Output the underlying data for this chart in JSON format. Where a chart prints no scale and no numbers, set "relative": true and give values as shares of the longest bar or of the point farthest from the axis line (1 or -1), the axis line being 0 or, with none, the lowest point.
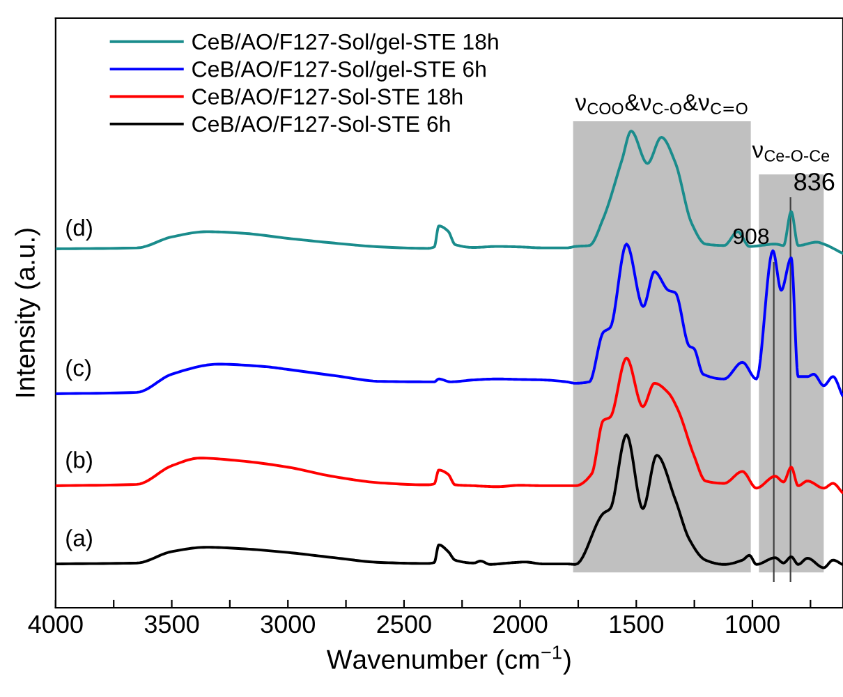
{
  "chart_data": {
    "type": "line",
    "relative": true,
    "xlabel": "Wavenumber (cm$^{−1}$)",
    "ylabel": "Intensity (a.u.)",
    "xlim": [
      4000,
      610
    ],
    "xticks": [
      4000,
      {
        "value": 3750,
        "label": null
      },
      3500,
      {
        "value": 3250,
        "label": null
      },
      3000,
      {
        "value": 2750,
        "label": null
      },
      2500,
      {
        "value": 2250,
        "label": null
      },
      2000,
      {
        "value": 1750,
        "label": null
      },
      1500,
      {
        "value": 1250,
        "label": null
      },
      1000,
      {
        "value": 750,
        "label": null
      }
    ],
    "grid": false,
    "legend": "top left",
    "tick_labels": "x",
    "line_style": "solid",
    "marker": "none",
    "series": [
      {
        "name": "CeB/AO/F127-Sol/gel-STE 18h",
        "color": "#1a8c8c",
        "x": [
          4000,
          3650,
          3500,
          3350,
          3200,
          3000,
          2800,
          2600,
          2400,
          2370,
          2350,
          2310,
          2280,
          2200,
          2100,
          2000,
          1900,
          1800,
          1762,
          1702,
          1642,
          1562,
          1522,
          1452,
          1392,
          1332,
          1262,
          1202,
          1122,
          1063,
          1013,
          902,
          866,
          833,
          803,
          723,
          693,
          613
        ],
        "values": [
          0.753,
          0.755,
          0.778,
          0.789,
          0.786,
          0.775,
          0.765,
          0.757,
          0.754,
          0.757,
          0.801,
          0.79,
          0.762,
          0.756,
          0.758,
          0.757,
          0.755,
          0.755,
          0.758,
          0.76,
          0.817,
          0.939,
          1,
          0.932,
          0.987,
          0.934,
          0.807,
          0.763,
          0.76,
          0.789,
          0.758,
          0.763,
          0.76,
          0.831,
          0.76,
          0.767,
          0.763,
          0.744
        ]
      },
      {
        "name": "CeB/AO/F127-Sol/gel-STE 6h",
        "color": "#0000ff",
        "x": [
          4000,
          3650,
          3500,
          3300,
          3100,
          3000,
          2800,
          2600,
          2400,
          2370,
          2350,
          2300,
          2200,
          2100,
          2000,
          1900,
          1800,
          1762,
          1702,
          1642,
          1612,
          1542,
          1470,
          1422,
          1362,
          1332,
          1272,
          1252,
          1212,
          1122,
          1043,
          983,
          912,
          876,
          833,
          803,
          763,
          736,
          693,
          653,
          613
        ],
        "values": [
          0.449,
          0.452,
          0.49,
          0.511,
          0.506,
          0.5,
          0.487,
          0.475,
          0.474,
          0.474,
          0.48,
          0.474,
          0.478,
          0.48,
          0.479,
          0.478,
          0.474,
          0.471,
          0.474,
          0.578,
          0.588,
          0.763,
          0.632,
          0.705,
          0.666,
          0.661,
          0.549,
          0.544,
          0.49,
          0.48,
          0.515,
          0.48,
          0.749,
          0.666,
          0.734,
          0.485,
          0.485,
          0.49,
          0.466,
          0.485,
          0.446
        ]
      },
      {
        "name": "CeB/AO/F127-Sol-STE 18h",
        "color": "#ff0000",
        "x": [
          4000,
          3650,
          3500,
          3380,
          3200,
          3000,
          2800,
          2600,
          2400,
          2370,
          2350,
          2310,
          2280,
          2200,
          2100,
          2000,
          1900,
          1800,
          1762,
          1692,
          1642,
          1612,
          1542,
          1472,
          1422,
          1362,
          1322,
          1252,
          1202,
          1122,
          1043,
          983,
          902,
          866,
          833,
          803,
          763,
          693,
          653,
          613
        ],
        "values": [
          0.256,
          0.259,
          0.298,
          0.314,
          0.308,
          0.295,
          0.275,
          0.262,
          0.258,
          0.26,
          0.289,
          0.28,
          0.258,
          0.256,
          0.254,
          0.257,
          0.256,
          0.256,
          0.256,
          0.281,
          0.393,
          0.4,
          0.524,
          0.422,
          0.471,
          0.451,
          0.417,
          0.32,
          0.266,
          0.261,
          0.286,
          0.251,
          0.276,
          0.264,
          0.295,
          0.256,
          0.266,
          0.251,
          0.261,
          0.242
        ]
      },
      {
        "name": "CeB/AO/F127-Sol-STE 6h",
        "color": "#000000",
        "x": [
          4000,
          3650,
          3500,
          3350,
          3200,
          3000,
          2800,
          2600,
          2400,
          2370,
          2350,
          2310,
          2280,
          2200,
          2170,
          2130,
          2050,
          1980,
          1900,
          1800,
          1762,
          1642,
          1612,
          1542,
          1472,
          1412,
          1332,
          1272,
          1202,
          1122,
          1043,
          1013,
          983,
          902,
          866,
          833,
          803,
          763,
          693,
          653,
          613
        ],
        "values": [
          0.092,
          0.094,
          0.118,
          0.127,
          0.124,
          0.116,
          0.105,
          0.095,
          0.093,
          0.095,
          0.132,
          0.118,
          0.1,
          0.094,
          0.098,
          0.091,
          0.094,
          0.096,
          0.092,
          0.092,
          0.091,
          0.198,
          0.208,
          0.363,
          0.208,
          0.32,
          0.227,
          0.144,
          0.1,
          0.091,
          0.1,
          0.11,
          0.091,
          0.105,
          0.094,
          0.107,
          0.091,
          0.104,
          0.084,
          0.1,
          0.091
        ]
      }
    ],
    "annotations": [
      "(d)",
      "(c)",
      "(b)",
      "(a)"
    ],
    "bands": [
      {
        "axis": "x",
        "from": 1772,
        "to": 1007,
        "color": "#c0c0c0",
        "label": "ν$_{COO}$&ν$_{C-O}$&ν$_{C=O}$"
      },
      {
        "axis": "x",
        "from": 972,
        "to": 693,
        "color": "#c0c0c0",
        "label": "ν$_{Ce-O-Ce}$"
      }
    ],
    "ref_lines": [
      {
        "axis": "x",
        "value": 908,
        "label": "908",
        "color": "#404040"
      },
      {
        "axis": "x",
        "value": 836,
        "label": "836",
        "color": "#404040"
      }
    ]
  }
}
